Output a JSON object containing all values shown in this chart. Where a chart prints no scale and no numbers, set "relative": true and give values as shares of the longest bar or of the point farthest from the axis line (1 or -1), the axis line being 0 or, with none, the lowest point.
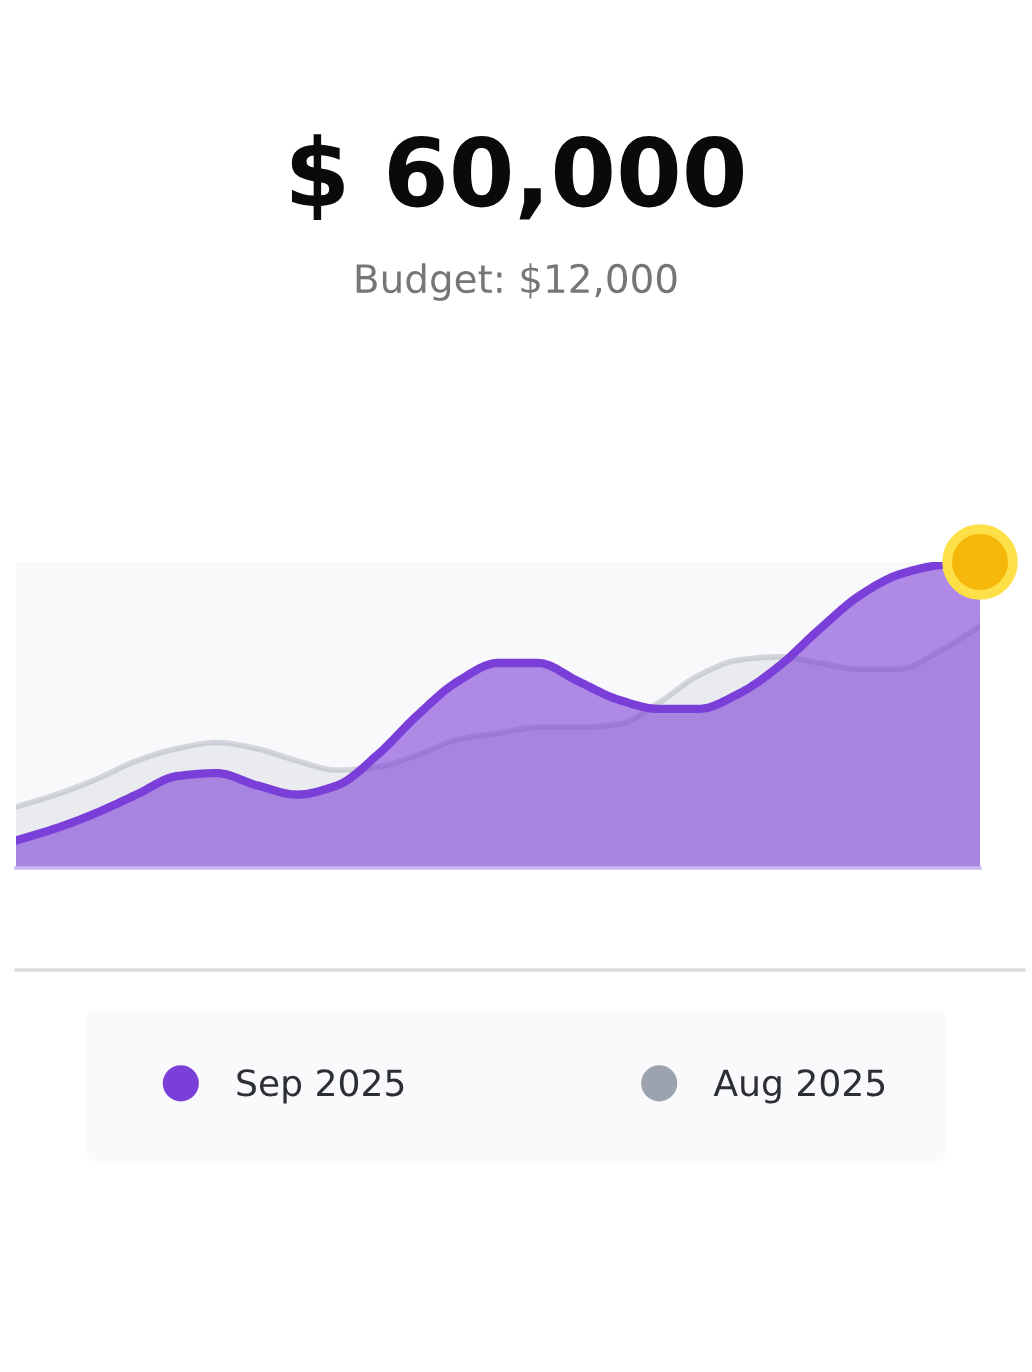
{
  "chart_data": {
    "type": "area",
    "title": "$ 60,000",
    "subtitle": "Budget: $12,000",
    "categories": [
      null,
      null,
      null,
      null,
      null,
      null,
      null,
      null,
      null,
      null,
      null,
      null,
      null,
      null,
      null,
      null,
      null,
      null,
      null,
      null,
      null,
      null,
      null,
      null,
      null
    ],
    "series": [
      {
        "name": "Sep 2025",
        "color": "#7b3fd9",
        "values": [
          0.09,
          0.13,
          0.18,
          0.24,
          0.3,
          0.31,
          0.27,
          0.24,
          0.27,
          0.37,
          0.5,
          0.61,
          0.67,
          0.67,
          0.61,
          0.55,
          0.52,
          0.52,
          0.57,
          0.66,
          0.78,
          0.89,
          0.96,
          0.99,
          1.0
        ]
      },
      {
        "name": "Aug 2025",
        "color": "#9ca3af",
        "values": [
          0.2,
          0.24,
          0.29,
          0.35,
          0.39,
          0.41,
          0.39,
          0.35,
          0.32,
          0.33,
          0.37,
          0.42,
          0.44,
          0.46,
          0.46,
          0.47,
          0.54,
          0.63,
          0.68,
          0.69,
          0.67,
          0.65,
          0.65,
          0.71,
          0.79
        ]
      }
    ],
    "relative": true,
    "legend": "bottom"
  }
}
